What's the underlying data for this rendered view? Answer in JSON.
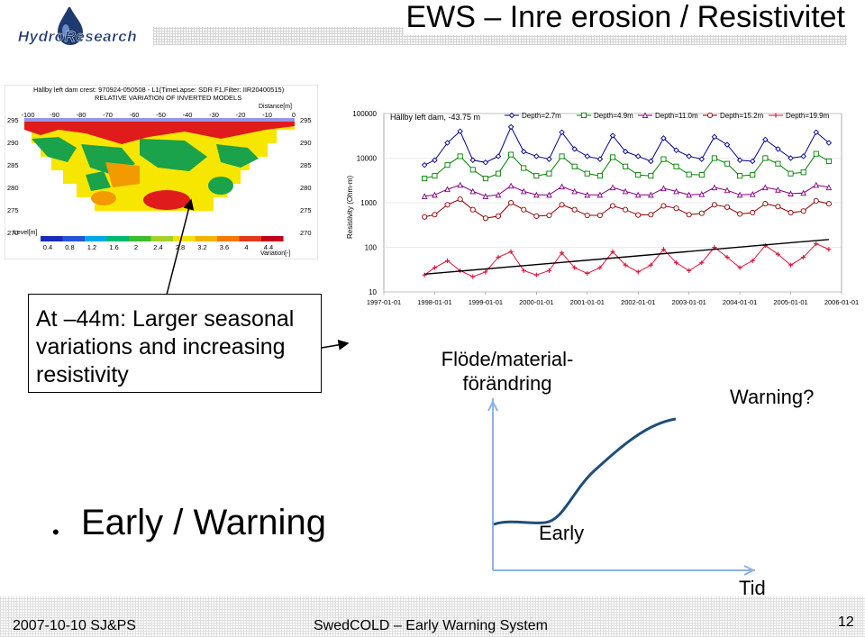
{
  "slide": {
    "title": "EWS – Inre erosion / Resistivitet",
    "logo_text": "HydroResearch",
    "callout": "At –44m: Larger seasonal variations and increasing resistivity",
    "flow_label": "Flöde/material-förändring",
    "warning_label": "Warning?",
    "bullet_glyph": "•",
    "bullet_text": "Early / Warning",
    "early_label": "Early",
    "time_label": "Tid",
    "footer_date": "2007-10-10 SJ&PS",
    "footer_center": "SwedCOLD – Early Warning System",
    "page_number": "12"
  },
  "inversion_image": {
    "header_line1": "Hällby left dam crest: 970924-050508 - L1(TimeLapse: SDR F1,Filter: IIR20400515)",
    "header_line2": "RELATIVE VARIATION OF INVERTED MODELS",
    "distance_label": "Distance[m]",
    "distance_ticks": [
      "-100",
      "-90",
      "-80",
      "-70",
      "-60",
      "-50",
      "-40",
      "-30",
      "-20",
      "-10",
      "0"
    ],
    "level_ticks": [
      "295",
      "290",
      "285",
      "280",
      "275",
      "270"
    ],
    "level_label": "Level[m]",
    "scale_ticks": [
      "0.4",
      "0.8",
      "1.2",
      "1.6",
      "2",
      "2.4",
      "2.8",
      "3.2",
      "3.6",
      "4",
      "4.4"
    ],
    "scale_label": "Variation[-]"
  },
  "chart_data": {
    "type": "line",
    "title": "Hällby left dam, -43.75 m",
    "ylabel": "Resistivity (Ohm-m)",
    "xlabel": "",
    "y_scale": "log",
    "ylim": [
      10,
      100000
    ],
    "y_ticks": [
      "10",
      "100",
      "1000",
      "10000",
      "100000"
    ],
    "x_ticks": [
      "1997-01-01",
      "1998-01-01",
      "1999-01-01",
      "2000-01-01",
      "2001-01-01",
      "2002-01-01",
      "2003-01-01",
      "2004-01-01",
      "2005-01-01",
      "2006-01-01"
    ],
    "xlim": [
      1997.0,
      2006.0
    ],
    "legend_position": "top",
    "series": [
      {
        "name": "Depth=2.7m",
        "color": "#00008b",
        "marker": "diamond",
        "x": [
          1997.8,
          1998.0,
          1998.25,
          1998.5,
          1998.75,
          1999.0,
          1999.25,
          1999.5,
          1999.75,
          2000.0,
          2000.25,
          2000.5,
          2000.75,
          2001.0,
          2001.25,
          2001.5,
          2001.75,
          2002.0,
          2002.25,
          2002.5,
          2002.75,
          2003.0,
          2003.25,
          2003.5,
          2003.75,
          2004.0,
          2004.25,
          2004.5,
          2004.75,
          2005.0,
          2005.25,
          2005.5,
          2005.75
        ],
        "y": [
          7000,
          9000,
          22000,
          40000,
          9000,
          8000,
          11000,
          50000,
          14000,
          11000,
          9500,
          38000,
          16000,
          11000,
          9500,
          32000,
          14000,
          11000,
          8500,
          28000,
          15000,
          11000,
          9500,
          30000,
          20000,
          9000,
          8500,
          26000,
          16000,
          10000,
          11000,
          38000,
          22000
        ]
      },
      {
        "name": "Depth=4.9m",
        "color": "#008000",
        "marker": "square",
        "x": [
          1997.8,
          1998.0,
          1998.25,
          1998.5,
          1998.75,
          1999.0,
          1999.25,
          1999.5,
          1999.75,
          2000.0,
          2000.25,
          2000.5,
          2000.75,
          2001.0,
          2001.25,
          2001.5,
          2001.75,
          2002.0,
          2002.25,
          2002.5,
          2002.75,
          2003.0,
          2003.25,
          2003.5,
          2003.75,
          2004.0,
          2004.25,
          2004.5,
          2004.75,
          2005.0,
          2005.25,
          2005.5,
          2005.75
        ],
        "y": [
          3500,
          4000,
          7000,
          11000,
          5500,
          3500,
          4500,
          12000,
          6000,
          4000,
          4500,
          11000,
          6500,
          4500,
          4000,
          10500,
          6500,
          4200,
          4000,
          9500,
          6500,
          4300,
          4200,
          10000,
          7500,
          4000,
          4200,
          10000,
          7500,
          4500,
          4800,
          12500,
          8500
        ]
      },
      {
        "name": "Depth=11.0m",
        "color": "#800080",
        "marker": "triangle",
        "x": [
          1997.8,
          1998.0,
          1998.25,
          1998.5,
          1998.75,
          1999.0,
          1999.25,
          1999.5,
          1999.75,
          2000.0,
          2000.25,
          2000.5,
          2000.75,
          2001.0,
          2001.25,
          2001.5,
          2001.75,
          2002.0,
          2002.25,
          2002.5,
          2002.75,
          2003.0,
          2003.25,
          2003.5,
          2003.75,
          2004.0,
          2004.25,
          2004.5,
          2004.75,
          2005.0,
          2005.25,
          2005.5,
          2005.75
        ],
        "y": [
          1400,
          1500,
          2000,
          2500,
          1800,
          1400,
          1500,
          2400,
          1800,
          1500,
          1500,
          2300,
          1800,
          1500,
          1500,
          2200,
          1800,
          1500,
          1500,
          2100,
          1800,
          1500,
          1550,
          2200,
          1900,
          1500,
          1550,
          2200,
          1950,
          1600,
          1650,
          2500,
          2200
        ]
      },
      {
        "name": "Depth=15.2m",
        "color": "#8b0000",
        "marker": "circle",
        "x": [
          1997.8,
          1998.0,
          1998.25,
          1998.5,
          1998.75,
          1999.0,
          1999.25,
          1999.5,
          1999.75,
          2000.0,
          2000.25,
          2000.5,
          2000.75,
          2001.0,
          2001.25,
          2001.5,
          2001.75,
          2002.0,
          2002.25,
          2002.5,
          2002.75,
          2003.0,
          2003.25,
          2003.5,
          2003.75,
          2004.0,
          2004.25,
          2004.5,
          2004.75,
          2005.0,
          2005.25,
          2005.5,
          2005.75
        ],
        "y": [
          480,
          540,
          900,
          1200,
          700,
          450,
          500,
          1000,
          700,
          500,
          520,
          900,
          700,
          520,
          520,
          850,
          700,
          530,
          540,
          850,
          750,
          540,
          580,
          900,
          800,
          560,
          600,
          950,
          820,
          600,
          650,
          1100,
          950
        ]
      },
      {
        "name": "Depth=19.9m",
        "color": "#dc143c",
        "marker": "plus",
        "x": [
          1997.8,
          1998.0,
          1998.25,
          1998.5,
          1998.75,
          1999.0,
          1999.25,
          1999.5,
          1999.75,
          2000.0,
          2000.25,
          2000.5,
          2000.75,
          2001.0,
          2001.25,
          2001.5,
          2001.75,
          2002.0,
          2002.25,
          2002.5,
          2002.75,
          2003.0,
          2003.25,
          2003.5,
          2003.75,
          2004.0,
          2004.25,
          2004.5,
          2004.75,
          2005.0,
          2005.25,
          2005.5,
          2005.75
        ],
        "y": [
          24,
          35,
          50,
          30,
          22,
          28,
          60,
          80,
          30,
          24,
          30,
          75,
          35,
          26,
          35,
          80,
          40,
          28,
          40,
          90,
          45,
          30,
          45,
          100,
          60,
          35,
          50,
          110,
          70,
          40,
          60,
          120,
          90
        ]
      }
    ],
    "trendline": {
      "color": "#000000",
      "x": [
        1997.8,
        2005.75
      ],
      "y": [
        25,
        150
      ]
    }
  },
  "sketch": {
    "curve_color": "#1f4e79",
    "axis_color": "#8db3e2"
  }
}
